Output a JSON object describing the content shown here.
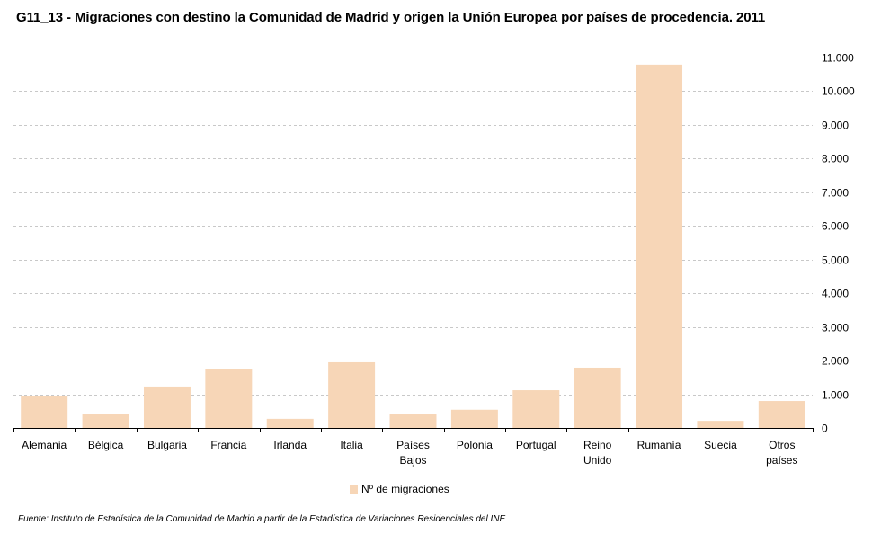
{
  "chart_data": {
    "type": "bar",
    "title": "G11_13 - Migraciones con destino la Comunidad de Madrid y origen la Unión Europea por países de procedencia. 2011",
    "categories": [
      [
        "Alemania"
      ],
      [
        "Bélgica"
      ],
      [
        "Bulgaria"
      ],
      [
        "Francia"
      ],
      [
        "Irlanda"
      ],
      [
        "Italia"
      ],
      [
        "Países",
        "Bajos"
      ],
      [
        "Polonia"
      ],
      [
        "Portugal"
      ],
      [
        "Reino",
        "Unido"
      ],
      [
        "Rumanía"
      ],
      [
        "Suecia"
      ],
      [
        "Otros",
        "países"
      ]
    ],
    "series": [
      {
        "name": "Nº de migraciones",
        "color": "#f7d6b7",
        "values": [
          940,
          400,
          1230,
          1760,
          270,
          1950,
          400,
          540,
          1120,
          1790,
          10790,
          210,
          800
        ]
      }
    ],
    "xlabel": "",
    "ylabel": "",
    "ylim": [
      0,
      11000
    ],
    "yticks": [
      0,
      1000,
      2000,
      3000,
      4000,
      5000,
      6000,
      7000,
      8000,
      9000,
      10000,
      11000
    ],
    "ytick_labels": [
      "0",
      "1.000",
      "2.000",
      "3.000",
      "4.000",
      "5.000",
      "6.000",
      "7.000",
      "8.000",
      "9.000",
      "10.000",
      "11.000"
    ],
    "y_axis_side": "right",
    "grid": true,
    "legend_position": "bottom-center",
    "source": "Fuente: Instituto de Estadística de la Comunidad de Madrid a partir de la Estadística de Variaciones Residenciales del INE"
  }
}
